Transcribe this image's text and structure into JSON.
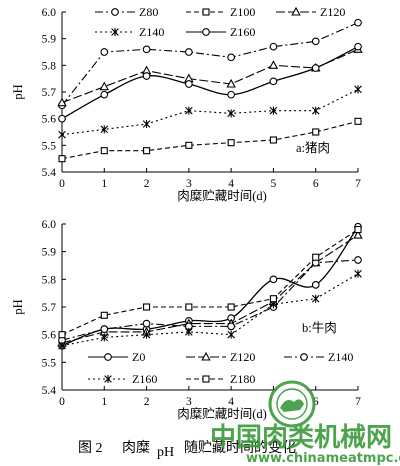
{
  "chart_data": [
    {
      "type": "line",
      "x": [
        0,
        1,
        2,
        3,
        4,
        5,
        6,
        7
      ],
      "xlabel": "肉糜贮藏时间(d)",
      "ylabel": "pH",
      "ylim": [
        5.4,
        6.0
      ],
      "yticks": [
        "5.4",
        "5.5",
        "5.6",
        "5.7",
        "5.8",
        "5.9",
        "6.0"
      ],
      "xticks": [
        "0",
        "1",
        "2",
        "3",
        "4",
        "5",
        "6",
        "7"
      ],
      "annotation": "a:猪肉",
      "grid": false,
      "legend_position": "top",
      "series": [
        {
          "name": "Z80",
          "style": "dashdot",
          "marker": "circle",
          "values": [
            5.65,
            5.85,
            5.86,
            5.85,
            5.83,
            5.87,
            5.89,
            5.96
          ]
        },
        {
          "name": "Z100",
          "style": "dashed",
          "marker": "square",
          "values": [
            5.45,
            5.48,
            5.48,
            5.5,
            5.51,
            5.52,
            5.55,
            5.59
          ]
        },
        {
          "name": "Z120",
          "style": "longdash",
          "marker": "triangle",
          "values": [
            5.66,
            5.72,
            5.78,
            5.75,
            5.73,
            5.8,
            5.79,
            5.86
          ]
        },
        {
          "name": "Z140",
          "style": "dotted",
          "marker": "star",
          "values": [
            5.54,
            5.56,
            5.58,
            5.63,
            5.62,
            5.63,
            5.63,
            5.71
          ]
        },
        {
          "name": "Z160",
          "style": "solid",
          "marker": "circle",
          "values": [
            5.6,
            5.69,
            5.76,
            5.73,
            5.69,
            5.74,
            5.79,
            5.87
          ]
        }
      ]
    },
    {
      "type": "line",
      "x": [
        0,
        1,
        2,
        3,
        4,
        5,
        6,
        7
      ],
      "xlabel": "肉糜贮藏时间(d)",
      "ylabel": "pH",
      "ylim": [
        5.4,
        6.0
      ],
      "yticks": [
        "5.4",
        "5.5",
        "5.6",
        "5.7",
        "5.8",
        "5.9",
        "6.0"
      ],
      "xticks": [
        "0",
        "1",
        "2",
        "3",
        "4",
        "5",
        "6",
        "7"
      ],
      "annotation": "b:牛肉",
      "grid": false,
      "legend_position": "bottom",
      "series": [
        {
          "name": "Z0",
          "style": "solid",
          "marker": "circle",
          "values": [
            5.56,
            5.62,
            5.62,
            5.65,
            5.66,
            5.8,
            5.78,
            5.99
          ]
        },
        {
          "name": "Z120",
          "style": "longdash",
          "marker": "triangle",
          "values": [
            5.57,
            5.61,
            5.61,
            5.64,
            5.64,
            5.72,
            5.86,
            5.96
          ]
        },
        {
          "name": "Z140",
          "style": "dashdot",
          "marker": "circle",
          "values": [
            5.58,
            5.62,
            5.64,
            5.63,
            5.63,
            5.7,
            5.86,
            5.87
          ]
        },
        {
          "name": "Z160",
          "style": "dotted",
          "marker": "star",
          "values": [
            5.56,
            5.59,
            5.6,
            5.61,
            5.6,
            5.71,
            5.73,
            5.82
          ]
        },
        {
          "name": "Z180",
          "style": "dashed",
          "marker": "square",
          "values": [
            5.6,
            5.67,
            5.7,
            5.7,
            5.7,
            5.73,
            5.88,
            5.98
          ]
        }
      ]
    }
  ],
  "caption": {
    "figure_no": "图 2",
    "text_a": "肉糜",
    "text_b": "pH",
    "text_c": "随贮藏时间的变化"
  },
  "watermark": {
    "text": "中国肉类机械网",
    "url": "www.chinameatmpc.org"
  }
}
